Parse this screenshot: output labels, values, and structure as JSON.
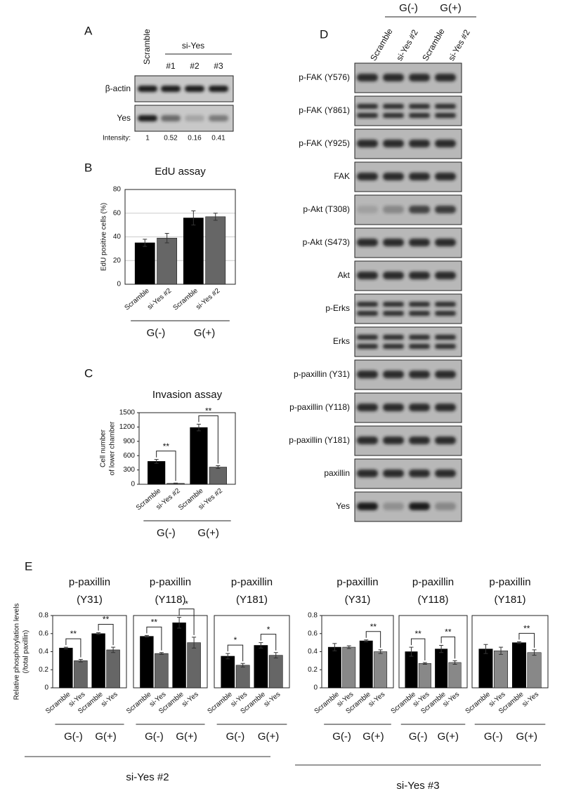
{
  "blot_a": {
    "letter": "A",
    "lanes": [
      "Scramble"
    ],
    "group": "si-Yes",
    "group_lanes": [
      "#1",
      "#2",
      "#3"
    ],
    "rows": [
      "β-actin",
      "Yes"
    ],
    "intensity_label": "Intensity:",
    "intensity": [
      1,
      0.52,
      0.16,
      0.41
    ]
  },
  "blot_d": {
    "letter": "D",
    "groups": [
      "G(-)",
      "G(+)"
    ],
    "lanes": [
      "Scramble",
      "si-Yes #2",
      "Scramble",
      "si-Yes #2"
    ],
    "rows": [
      "p-FAK (Y576)",
      "p-FAK (Y861)",
      "p-FAK (Y925)",
      "FAK",
      "p-Akt (T308)",
      "p-Akt (S473)",
      "Akt",
      "p-Erks",
      "Erks",
      "p-paxillin (Y31)",
      "p-paxillin (Y118)",
      "p-paxillin (Y181)",
      "paxillin",
      "Yes"
    ]
  },
  "panel_e": {
    "sets": [
      "si-Yes #2",
      "si-Yes #3"
    ]
  },
  "chart_data": [
    {
      "type": "bar",
      "letter": "B",
      "title": "EdU assay",
      "ylabel": [
        "EdU positive cells (%)"
      ],
      "categories": [
        "Scramble",
        "si-Yes #2",
        "Scramble",
        "si-Yes #2"
      ],
      "groups": [
        "G(-)",
        "G(+)"
      ],
      "values": [
        35,
        39,
        56,
        57
      ],
      "errors": [
        3,
        4,
        6,
        3
      ],
      "colors": [
        "#000000",
        "#666666",
        "#000000",
        "#666666"
      ],
      "ylim": [
        0,
        80
      ],
      "yticks": [
        0,
        20,
        40,
        60,
        80
      ],
      "grid": true,
      "pair_significance": [
        null,
        null
      ]
    },
    {
      "type": "bar",
      "letter": "C",
      "title": "Invasion assay",
      "ylabel": [
        "Cell number",
        "of lower chamber"
      ],
      "categories": [
        "Scramble",
        "si-Yes #2",
        "Scramble",
        "si-Yes #2"
      ],
      "groups": [
        "G(-)",
        "G(+)"
      ],
      "values": [
        480,
        20,
        1190,
        360
      ],
      "errors": [
        40,
        5,
        70,
        30
      ],
      "colors": [
        "#000000",
        "#666666",
        "#000000",
        "#666666"
      ],
      "ylim": [
        0,
        1500
      ],
      "yticks": [
        0,
        300,
        600,
        900,
        1200,
        1500
      ],
      "grid": false,
      "pair_significance": [
        "**",
        "**"
      ]
    },
    {
      "type": "bar",
      "letter": "E",
      "title": "p-paxillin",
      "subtitle": "(Y31)",
      "ylabel": [
        "Relative phosphorylation levels",
        "(/total paxillin)"
      ],
      "categories": [
        "Scramble",
        "si-Yes",
        "Scramble",
        "si-Yes"
      ],
      "groups": [
        "G(-)",
        "G(+)"
      ],
      "values": [
        0.44,
        0.3,
        0.6,
        0.42
      ],
      "errors": [
        0.01,
        0.015,
        0.01,
        0.03
      ],
      "colors": [
        "#000000",
        "#666666",
        "#000000",
        "#666666"
      ],
      "ylim": [
        0,
        0.8
      ],
      "yticks": [
        0,
        0.2,
        0.4,
        0.6,
        0.8
      ],
      "grid": false,
      "pair_significance": [
        "**",
        "**"
      ]
    },
    {
      "type": "bar",
      "title": "p-paxillin",
      "subtitle": "(Y118)",
      "categories": [
        "Scramble",
        "si-Yes",
        "Scramble",
        "si-Yes"
      ],
      "groups": [
        "G(-)",
        "G(+)"
      ],
      "values": [
        0.57,
        0.38,
        0.72,
        0.5
      ],
      "errors": [
        0.01,
        0.01,
        0.06,
        0.06
      ],
      "colors": [
        "#000000",
        "#666666",
        "#000000",
        "#666666"
      ],
      "ylim": [
        0,
        0.8
      ],
      "grid": false,
      "pair_significance": [
        "**",
        "*"
      ]
    },
    {
      "type": "bar",
      "title": "p-paxillin",
      "subtitle": "(Y181)",
      "categories": [
        "Scramble",
        "si-Yes",
        "Scramble",
        "si-Yes"
      ],
      "groups": [
        "G(-)",
        "G(+)"
      ],
      "values": [
        0.35,
        0.25,
        0.47,
        0.36
      ],
      "errors": [
        0.03,
        0.02,
        0.03,
        0.03
      ],
      "colors": [
        "#000000",
        "#666666",
        "#000000",
        "#666666"
      ],
      "ylim": [
        0,
        0.8
      ],
      "grid": false,
      "pair_significance": [
        "*",
        "*"
      ]
    },
    {
      "type": "bar",
      "title": "p-paxillin",
      "subtitle": "(Y31)",
      "categories": [
        "Scramble",
        "si-Yes",
        "Scramble",
        "si-Yes"
      ],
      "groups": [
        "G(-)",
        "G(+)"
      ],
      "values": [
        0.45,
        0.45,
        0.52,
        0.4
      ],
      "errors": [
        0.04,
        0.015,
        0.01,
        0.02
      ],
      "colors": [
        "#000000",
        "#888888",
        "#000000",
        "#888888"
      ],
      "ylim": [
        0,
        0.8
      ],
      "yticks": [
        0,
        0.2,
        0.4,
        0.6,
        0.8
      ],
      "grid": false,
      "pair_significance": [
        null,
        "**"
      ]
    },
    {
      "type": "bar",
      "title": "p-paxillin",
      "subtitle": "(Y118)",
      "categories": [
        "Scramble",
        "si-Yes",
        "Scramble",
        "si-Yes"
      ],
      "groups": [
        "G(-)",
        "G(+)"
      ],
      "values": [
        0.4,
        0.27,
        0.43,
        0.28
      ],
      "errors": [
        0.05,
        0.01,
        0.04,
        0.02
      ],
      "colors": [
        "#000000",
        "#888888",
        "#000000",
        "#888888"
      ],
      "ylim": [
        0,
        0.8
      ],
      "grid": false,
      "pair_significance": [
        "**",
        "**"
      ]
    },
    {
      "type": "bar",
      "title": "p-paxillin",
      "subtitle": "(Y181)",
      "categories": [
        "Scramble",
        "si-Yes",
        "Scramble",
        "si-Yes"
      ],
      "groups": [
        "G(-)",
        "G(+)"
      ],
      "values": [
        0.43,
        0.41,
        0.5,
        0.39
      ],
      "errors": [
        0.05,
        0.04,
        0.01,
        0.03
      ],
      "colors": [
        "#000000",
        "#888888",
        "#000000",
        "#888888"
      ],
      "ylim": [
        0,
        0.8
      ],
      "grid": false,
      "pair_significance": [
        null,
        "**"
      ]
    }
  ]
}
